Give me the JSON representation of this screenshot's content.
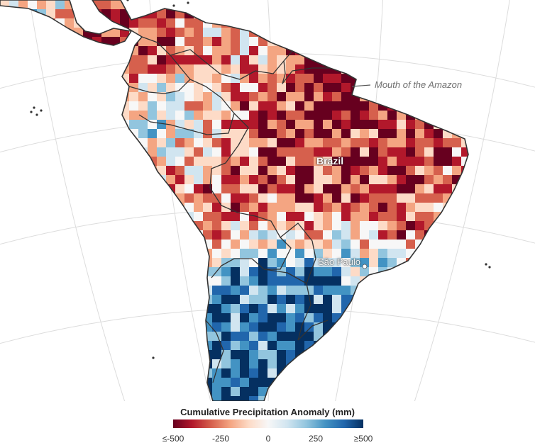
{
  "map": {
    "labels": {
      "country": "Brazil",
      "city": "São Paulo",
      "feature": "Mouth of the Amazon"
    },
    "colors": {
      "ocean": "#ffffff",
      "borders": "#333333",
      "graticule": "#dcdcdc",
      "dry_extreme": "#67001f",
      "wet_extreme": "#053061"
    }
  },
  "legend": {
    "title": "Cumulative Precipitation Anomaly (mm)",
    "ticks": [
      "≤-500",
      "-250",
      "0",
      "250",
      "≥500"
    ],
    "range": [
      -500,
      500
    ],
    "colors": [
      "#67001f",
      "#b2182b",
      "#d6604d",
      "#f4a582",
      "#fddbc7",
      "#f7f7f7",
      "#d1e5f0",
      "#92c5de",
      "#4393c3",
      "#2166ac",
      "#053061"
    ]
  }
}
